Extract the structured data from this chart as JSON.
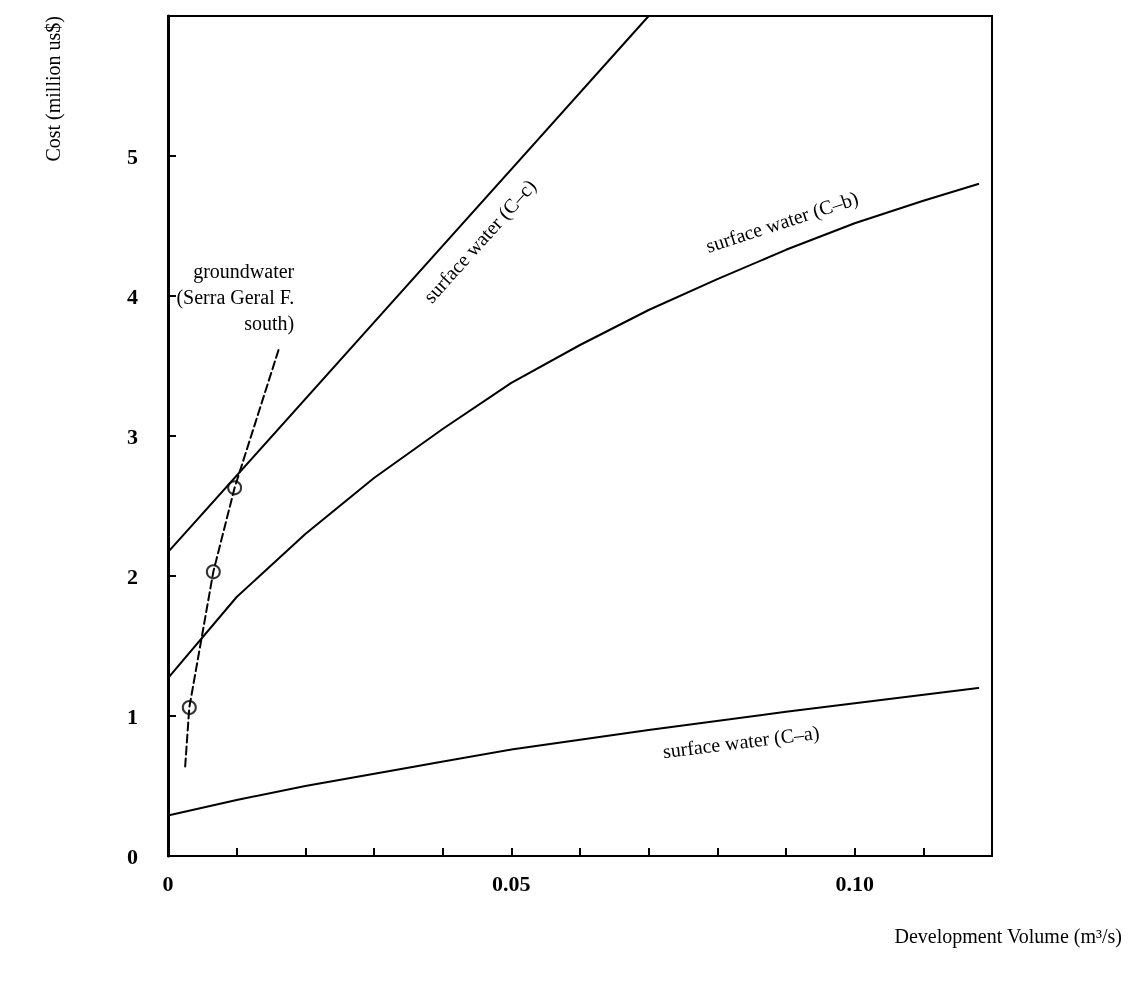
{
  "chart_data": {
    "type": "line",
    "xlabel": "Development Volume (m³/s)",
    "ylabel": "Cost (million us$)",
    "xlim": [
      0,
      0.12
    ],
    "ylim": [
      0,
      6
    ],
    "xticks": [
      0,
      {
        "value": 0.01,
        "label": null
      },
      {
        "value": 0.02,
        "label": null
      },
      {
        "value": 0.03,
        "label": null
      },
      {
        "value": 0.04,
        "label": null
      },
      {
        "value": 0.05,
        "label": "0.05"
      },
      {
        "value": 0.06,
        "label": null
      },
      {
        "value": 0.07,
        "label": null
      },
      {
        "value": 0.08,
        "label": null
      },
      {
        "value": 0.09,
        "label": null
      },
      {
        "value": 0.1,
        "label": "0.10"
      },
      {
        "value": 0.11,
        "label": null
      }
    ],
    "yticks": [
      0,
      1,
      2,
      3,
      4,
      5
    ],
    "series": [
      {
        "name": "surface water (C–c)",
        "color": "#000000",
        "x": [
          0,
          0.07
        ],
        "values": [
          2.17,
          6.0
        ],
        "line_style": "solid",
        "marker": "none"
      },
      {
        "name": "surface water (C–b)",
        "color": "#000000",
        "x": [
          0,
          0.01,
          0.02,
          0.03,
          0.04,
          0.05,
          0.06,
          0.07,
          0.08,
          0.09,
          0.1,
          0.11,
          0.118
        ],
        "values": [
          1.27,
          1.85,
          2.3,
          2.7,
          3.05,
          3.38,
          3.65,
          3.9,
          4.12,
          4.33,
          4.52,
          4.68,
          4.8
        ],
        "line_style": "solid",
        "marker": "none"
      },
      {
        "name": "surface water (C–a)",
        "color": "#000000",
        "x": [
          0,
          0.01,
          0.02,
          0.036,
          0.05,
          0.07,
          0.09,
          0.118
        ],
        "values": [
          0.29,
          0.4,
          0.5,
          0.64,
          0.76,
          0.9,
          1.03,
          1.2
        ],
        "line_style": "solid",
        "marker": "none"
      },
      {
        "name": "groundwater\n(Serra Geral F.\nsouth)",
        "color": "#000000",
        "x": [
          0.0025,
          0.0031,
          0.0066,
          0.0097,
          0.0162
        ],
        "values": [
          0.64,
          1.06,
          2.03,
          2.63,
          3.63
        ],
        "line_style": "dashed",
        "marker": "none"
      },
      {
        "type": "scatter",
        "color": "#000000",
        "x": [
          0.0031,
          0.0066,
          0.0097
        ],
        "values": [
          1.06,
          2.03,
          2.63
        ],
        "marker": "circle"
      }
    ]
  }
}
